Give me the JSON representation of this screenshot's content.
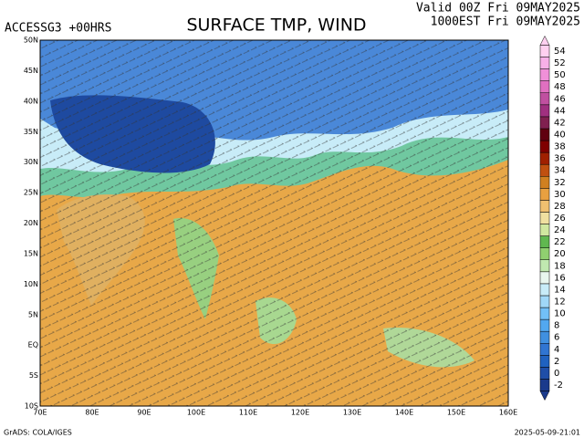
{
  "header": {
    "model": "ACCESSG3 +00HRS",
    "title": "SURFACE TMP, WIND",
    "valid": "Valid 00Z Fri 09MAY2025",
    "local": "1000EST Fri 09MAY2025"
  },
  "map": {
    "lat_labels": [
      "50N",
      "45N",
      "40N",
      "35N",
      "30N",
      "25N",
      "20N",
      "15N",
      "10N",
      "5N",
      "EQ",
      "5S",
      "10S"
    ],
    "lon_labels": [
      "70E",
      "80E",
      "90E",
      "100E",
      "110E",
      "120E",
      "130E",
      "140E",
      "150E",
      "160E"
    ]
  },
  "colorbar": {
    "labels": [
      -2,
      0,
      2,
      4,
      6,
      8,
      10,
      12,
      14,
      16,
      18,
      20,
      22,
      24,
      26,
      28,
      30,
      32,
      34,
      36,
      38,
      40,
      42,
      44,
      46,
      48,
      50,
      52,
      54
    ],
    "colors": [
      "#1a3a8c",
      "#1f4ea8",
      "#2062c0",
      "#3075d2",
      "#4090e0",
      "#52a8f0",
      "#72c0f8",
      "#a0d8f8",
      "#c8ecf8",
      "#e8f6ee",
      "#c0e8b0",
      "#90d070",
      "#60b850",
      "#d0e8a0",
      "#f0e0a0",
      "#f0c070",
      "#e8a040",
      "#d08020",
      "#c05010",
      "#a02000",
      "#800000",
      "#600010",
      "#802050",
      "#a03080",
      "#c050a0",
      "#e070c0",
      "#f090d8",
      "#f8b0e8",
      "#ffd0f0"
    ]
  },
  "footer": {
    "left": "GrADS: COLA/IGES",
    "right": "2025-05-09-21:01"
  }
}
